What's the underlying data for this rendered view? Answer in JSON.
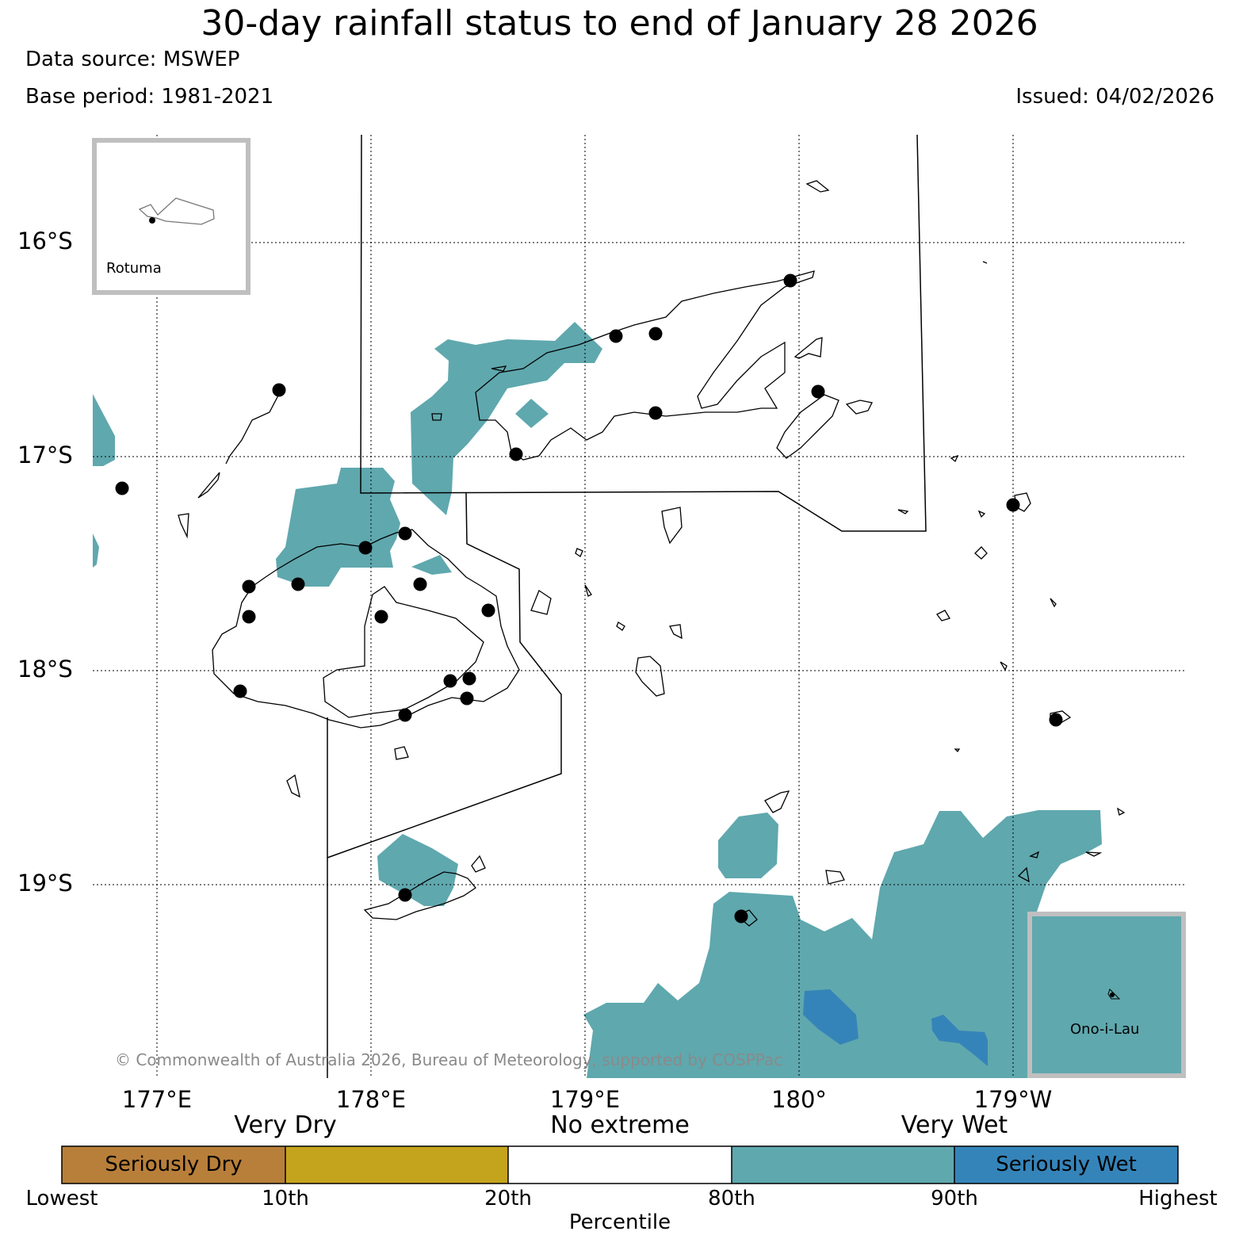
{
  "header": {
    "title": "30-day rainfall status to end of January 28 2026",
    "data_source": "Data source: MSWEP",
    "base_period": "Base period: 1981-2021",
    "issued": "Issued: 04/02/2026"
  },
  "map": {
    "lat_labels": [
      "16°S",
      "17°S",
      "18°S",
      "19°S"
    ],
    "lon_labels": [
      "177°E",
      "178°E",
      "179°E",
      "180°",
      "179°W"
    ],
    "copyright": "© Commonwealth of Australia 2026, Bureau of Meteorology, supported by COSPPac",
    "insets": {
      "rotuma": "Rotuma",
      "onoilau": "Ono-i-Lau"
    }
  },
  "legend": {
    "categories": [
      "Very Dry",
      "No extreme",
      "Very Wet"
    ],
    "segments": [
      {
        "label": "Seriously Dry",
        "color": "#b87f3a"
      },
      {
        "label": "",
        "color": "#c5a41d"
      },
      {
        "label": "",
        "color": "#ffffff"
      },
      {
        "label": "",
        "color": "#5fa8ae"
      },
      {
        "label": "Seriously Wet",
        "color": "#3584b9"
      }
    ],
    "ticks": [
      "Lowest",
      "10th",
      "20th",
      "80th",
      "90th",
      "Highest"
    ],
    "axis_label": "Percentile"
  },
  "colors": {
    "very_wet": "#5fa8ae",
    "seriously_wet": "#3584b9",
    "station": "#000000"
  }
}
